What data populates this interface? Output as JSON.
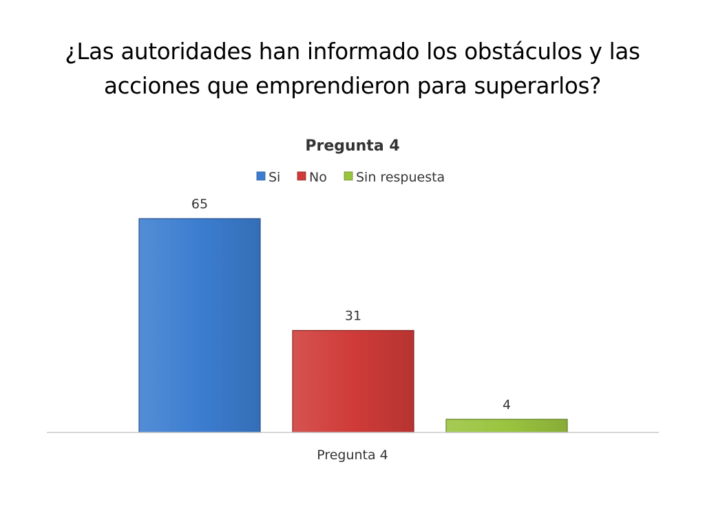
{
  "slide": {
    "title_line1": "¿Las autoridades han informado los obstáculos y las",
    "title_line2": "acciones que emprendieron para superarlos?"
  },
  "chart_data": {
    "type": "bar",
    "title": "Pregunta 4",
    "categories": [
      "Pregunta 4"
    ],
    "series": [
      {
        "name": "Si",
        "values": [
          65
        ],
        "color": "#3c7dd0"
      },
      {
        "name": "No",
        "values": [
          31
        ],
        "color": "#cf3b38"
      },
      {
        "name": "Sin respuesta",
        "values": [
          4
        ],
        "color": "#9ac43e"
      }
    ],
    "ylim": [
      0,
      65
    ],
    "grid": false,
    "legend": "top",
    "data_labels": true
  }
}
